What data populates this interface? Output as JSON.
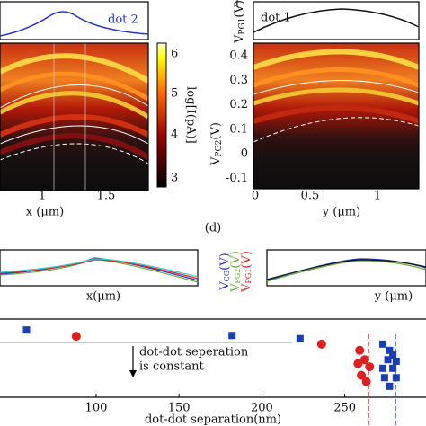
{
  "panel_c_left": {
    "label": "dot 2",
    "x_axis_label": "x (μm)",
    "x_ticks": [
      "1",
      "1.5"
    ],
    "colorbar_label": "log[I(pA)]",
    "colorbar_ticks": [
      "6",
      "5",
      "4",
      "3"
    ]
  },
  "panel_c_right": {
    "label": "dot 1",
    "x_axis_label": "y (μm)",
    "x_ticks": [
      "0",
      "0.5",
      "1"
    ],
    "y_ticks": [
      "0.4",
      "0.3",
      "0.2",
      "0.1",
      "0",
      "-0.1"
    ],
    "y_label": {
      "main": "V",
      "sub": "PG2",
      "unit": "(V)"
    },
    "strip_label": {
      "main": "V",
      "sub": "PG1",
      "unit": "(V)"
    }
  },
  "panel_d": {
    "tag": "(d)",
    "corner_mark": "(",
    "left_x_label": "x(μm)",
    "right_x_label": "y (μm)",
    "legend": [
      {
        "main": "V",
        "sub": "CG",
        "unit": "(V)",
        "color": "#2233cc"
      },
      {
        "main": "V",
        "sub": "PG2",
        "unit": "(V)",
        "color": "#66aa33"
      },
      {
        "main": "V",
        "sub": "PG1",
        "unit": "(V)",
        "color": "#dd2222"
      }
    ]
  },
  "scatter": {
    "annotation": [
      "dot-dot seperation",
      "is constant"
    ],
    "x_axis_label": "dot-dot separation(nm)",
    "xlim": [
      42,
      299
    ],
    "ylim": [
      0,
      1
    ],
    "xticks": [
      100,
      150,
      200,
      250
    ],
    "series": [
      {
        "color": "#1a3fb0",
        "marker": "square",
        "x": [
          58,
          182,
          223,
          273,
          277,
          279,
          276,
          281,
          273,
          279,
          274,
          281,
          277
        ],
        "y": [
          0.86,
          0.79,
          0.75,
          0.68,
          0.6,
          0.54,
          0.48,
          0.46,
          0.37,
          0.37,
          0.25,
          0.25,
          0.14
        ]
      },
      {
        "color": "#e02020",
        "marker": "circle",
        "x": [
          88,
          236,
          259,
          262,
          258,
          265,
          260,
          263
        ],
        "y": [
          0.78,
          0.68,
          0.6,
          0.48,
          0.43,
          0.39,
          0.28,
          0.2
        ]
      }
    ]
  }
}
